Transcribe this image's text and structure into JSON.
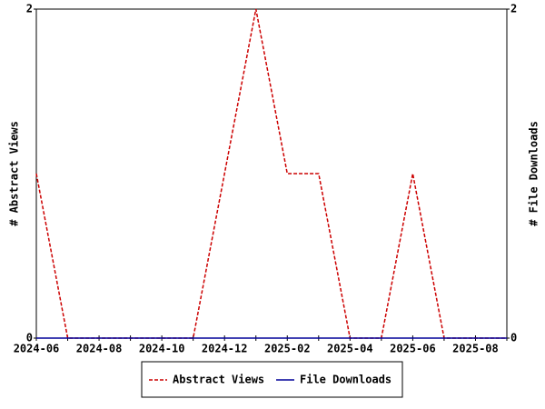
{
  "chart_data": {
    "type": "line",
    "categories": [
      "2024-06",
      null,
      "2024-08",
      null,
      "2024-10",
      null,
      "2024-12",
      null,
      "2025-02",
      null,
      "2025-04",
      null,
      "2025-06",
      null,
      "2025-08",
      null
    ],
    "series": [
      {
        "name": "Abstract Views",
        "color": "#cc0000",
        "dash": true,
        "values": [
          1,
          0,
          0,
          0,
          0,
          0,
          1,
          2,
          1,
          1,
          0,
          0,
          1,
          0,
          0,
          0
        ]
      },
      {
        "name": "File Downloads",
        "color": "#000099",
        "axis": "y2",
        "values": [
          0,
          0,
          0,
          0,
          0,
          0,
          0,
          0,
          0,
          0,
          0,
          0,
          0,
          0,
          0,
          0
        ]
      }
    ],
    "ylabel": "# Abstract Views",
    "y2label": "# File Downloads",
    "ylim": [
      0,
      2
    ],
    "yticks": [
      0,
      2
    ],
    "y2lim": [
      0,
      2
    ],
    "y2ticks": [
      0,
      2
    ]
  }
}
